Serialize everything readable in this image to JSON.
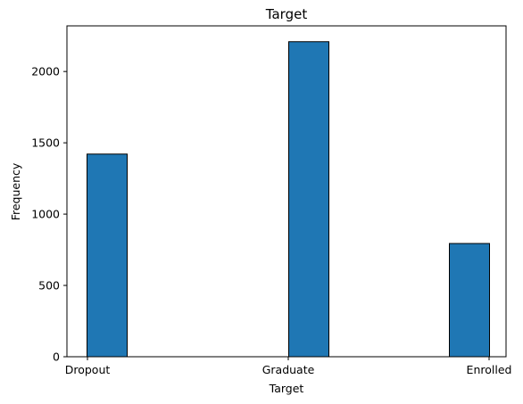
{
  "chart_data": {
    "type": "bar",
    "title": "Target",
    "xlabel": "Target",
    "ylabel": "Frequency",
    "categories": [
      "Dropout",
      "Graduate",
      "Enrolled"
    ],
    "values": [
      1421,
      2209,
      794
    ],
    "ylim": [
      0,
      2320
    ],
    "yticks": [
      0,
      500,
      1000,
      1500,
      2000
    ],
    "grid": false,
    "legend": "none",
    "bar_color": "#1f77b4",
    "edge_color": "#000000"
  }
}
